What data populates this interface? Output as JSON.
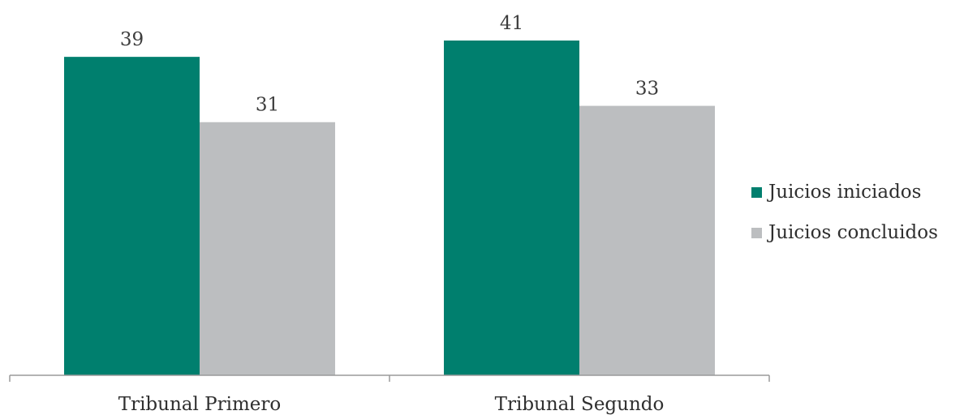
{
  "chart_data": {
    "type": "bar",
    "categories": [
      "Tribunal Primero",
      "Tribunal Segundo"
    ],
    "series": [
      {
        "name": "Juicios iniciados",
        "values": [
          39,
          41
        ],
        "color": "#007f6e"
      },
      {
        "name": "Juicios concluidos",
        "values": [
          31,
          33
        ],
        "color": "#bcbec0"
      }
    ],
    "title": "",
    "xlabel": "",
    "ylabel": "",
    "ylim": [
      0,
      41
    ],
    "grid": false,
    "legend_position": "right"
  }
}
